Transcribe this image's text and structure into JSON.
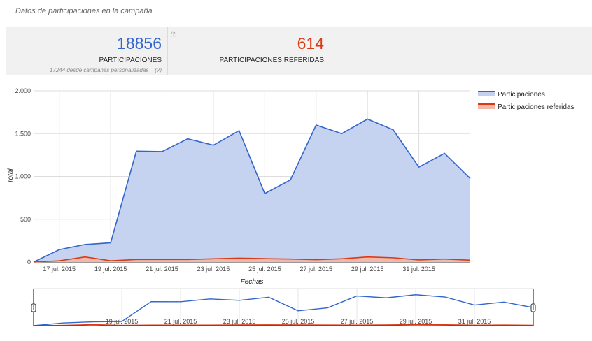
{
  "section_title": "Datos de participaciones en la campaña",
  "stats": {
    "participations": {
      "value": "18856",
      "label": "PARTICIPACIONES",
      "sub": "17244 desde campañas personalizadas",
      "sub_help": "(?)",
      "help": "(?)"
    },
    "referred": {
      "value": "614",
      "label": "PARTICIPACIONES REFERIDAS"
    }
  },
  "colors": {
    "participations": "#3366cc",
    "participations_fill": "#c2d1f0",
    "referred": "#dc3912",
    "referred_fill": "#f2b7a8"
  },
  "chart_data": {
    "type": "area",
    "xlabel": "Fechas",
    "ylabel": "Total",
    "ylim": [
      0,
      2000
    ],
    "yticks": [
      0,
      500,
      1000,
      1500,
      2000
    ],
    "ytick_labels": [
      "0",
      "500",
      "1.000",
      "1.500",
      "2.000"
    ],
    "x": [
      "2015-07-16",
      "2015-07-17",
      "2015-07-18",
      "2015-07-19",
      "2015-07-20",
      "2015-07-21",
      "2015-07-22",
      "2015-07-23",
      "2015-07-24",
      "2015-07-25",
      "2015-07-26",
      "2015-07-27",
      "2015-07-28",
      "2015-07-29",
      "2015-07-30",
      "2015-07-31",
      "2015-08-01",
      "2015-08-02"
    ],
    "xtick_labels": [
      "17 jul. 2015",
      "19 jul. 2015",
      "21 jul. 2015",
      "23 jul. 2015",
      "25 jul. 2015",
      "27 jul. 2015",
      "29 jul. 2015",
      "31 jul. 2015"
    ],
    "xtick_index": [
      1,
      3,
      5,
      7,
      9,
      11,
      13,
      15
    ],
    "legend_position": "right",
    "grid": true,
    "series": [
      {
        "name": "Participaciones",
        "values": [
          0,
          145,
          205,
          225,
          1295,
          1290,
          1440,
          1365,
          1535,
          800,
          960,
          1600,
          1500,
          1670,
          1545,
          1110,
          1270,
          975
        ]
      },
      {
        "name": "Participaciones referidas",
        "values": [
          0,
          15,
          60,
          15,
          30,
          30,
          30,
          38,
          45,
          40,
          35,
          28,
          38,
          60,
          50,
          25,
          35,
          22
        ]
      }
    ],
    "navigator": {
      "xtick_labels": [
        "19 jul. 2015",
        "21 jul. 2015",
        "23 jul. 2015",
        "25 jul. 2015",
        "27 jul. 2015",
        "29 jul. 2015",
        "31 jul. 2015"
      ],
      "xtick_index": [
        3,
        5,
        7,
        9,
        11,
        13,
        15
      ]
    }
  }
}
